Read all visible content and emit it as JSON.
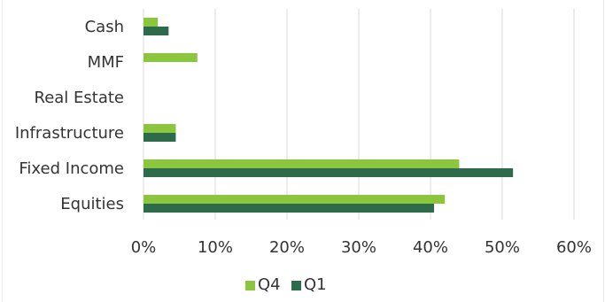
{
  "chart_data": {
    "type": "bar",
    "orientation": "horizontal",
    "categories": [
      "Cash",
      "MMF",
      "Real Estate",
      "Infrastructure",
      "Fixed Income",
      "Equities"
    ],
    "series": [
      {
        "name": "Q4",
        "color": "#8cc63f",
        "values": [
          2.0,
          7.5,
          0.0,
          4.5,
          44.0,
          42.0
        ]
      },
      {
        "name": "Q1",
        "color": "#2e6b4b",
        "values": [
          3.5,
          0.0,
          0.0,
          4.5,
          51.5,
          40.5
        ]
      }
    ],
    "x_ticks": [
      "0%",
      "10%",
      "20%",
      "30%",
      "40%",
      "50%",
      "60%"
    ],
    "xlim": [
      0,
      60
    ],
    "grid": true,
    "legend_position": "bottom"
  }
}
